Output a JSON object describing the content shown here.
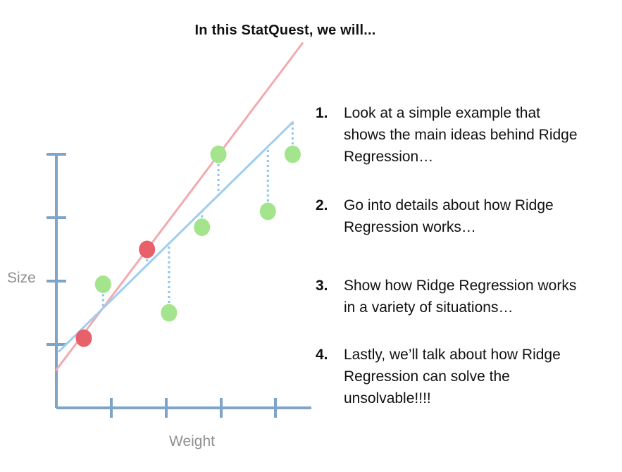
{
  "title": "In this StatQuest, we will...",
  "chart_data": {
    "type": "scatter",
    "xlabel": "Weight",
    "ylabel": "Size",
    "red_points": [
      [
        0.5,
        1.1
      ],
      [
        1.65,
        2.5
      ]
    ],
    "green_points": [
      [
        0.85,
        1.95
      ],
      [
        2.05,
        1.5
      ],
      [
        2.65,
        2.85
      ],
      [
        2.95,
        4.0
      ],
      [
        3.85,
        3.1
      ],
      [
        4.3,
        4.0
      ]
    ],
    "lines": [
      {
        "color": "#f2aab0",
        "intercept": 0.6,
        "slope": 1.15
      },
      {
        "color": "#9fcdf0",
        "intercept": 0.85,
        "slope": 0.85
      }
    ],
    "colors": {
      "axis": "#7ea4c8",
      "red_point": "#e8606a",
      "green_point": "#a4e48c",
      "residual": "#8ec4ef"
    }
  },
  "list": {
    "items": [
      {
        "number": "1.",
        "lines": [
          "Look at a simple example that",
          "shows the main ideas behind Ridge",
          "Regression…"
        ]
      },
      {
        "number": "2.",
        "lines": [
          "Go into details about how Ridge",
          "Regression works…"
        ]
      },
      {
        "number": "3.",
        "lines": [
          "Show how Ridge Regression works",
          "in a variety of situations…"
        ]
      },
      {
        "number": "4.",
        "lines": [
          "Lastly, we’ll talk about how Ridge",
          "Regression can solve the",
          "unsolvable!!!!"
        ]
      }
    ]
  }
}
